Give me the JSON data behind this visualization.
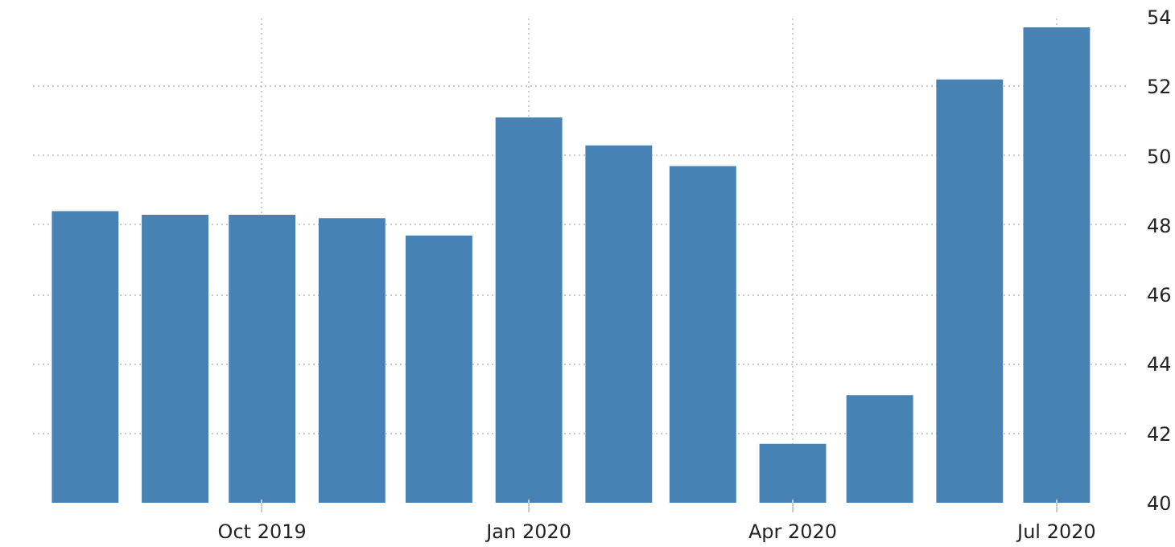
{
  "chart_data": {
    "type": "bar",
    "x": [
      "2019-08",
      "2019-09",
      "2019-10",
      "2019-11",
      "2019-12",
      "2020-01",
      "2020-02",
      "2020-03",
      "2020-04",
      "2020-05",
      "2020-06",
      "2020-07"
    ],
    "values": [
      48.4,
      48.3,
      48.3,
      48.2,
      47.7,
      51.1,
      50.3,
      49.7,
      41.7,
      43.1,
      52.2,
      53.7
    ],
    "color": "#4682b4",
    "xlim": [
      "2019-07-14",
      "2020-07-26"
    ],
    "xticks": [
      {
        "value": "2019-10",
        "label": "Oct 2019"
      },
      {
        "value": "2020-01",
        "label": "Jan 2020"
      },
      {
        "value": "2020-04",
        "label": "Apr 2020"
      },
      {
        "value": "2020-07",
        "label": "Jul 2020"
      }
    ],
    "ylim": [
      40,
      54
    ],
    "yticks": [
      40,
      42,
      44,
      46,
      48,
      50,
      52,
      54
    ],
    "grid": true
  }
}
